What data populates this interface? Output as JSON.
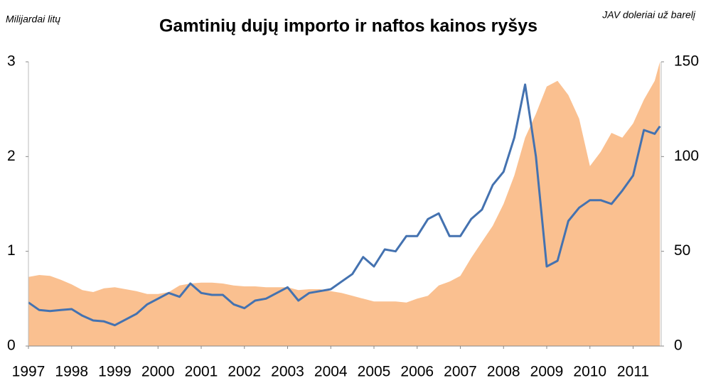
{
  "chart_data": {
    "type": "combo",
    "title": "Gamtinių dujų importo ir naftos kainos ryšys",
    "y_label": "Milijardai litų",
    "y2_label": "JAV doleriai už barelį",
    "x": [
      1997.0,
      1997.25,
      1997.5,
      1997.75,
      1998.0,
      1998.25,
      1998.5,
      1998.75,
      1999.0,
      1999.25,
      1999.5,
      1999.75,
      2000.0,
      2000.25,
      2000.5,
      2000.75,
      2001.0,
      2001.25,
      2001.5,
      2001.75,
      2002.0,
      2002.25,
      2002.5,
      2002.75,
      2003.0,
      2003.25,
      2003.5,
      2003.75,
      2004.0,
      2004.25,
      2004.5,
      2004.75,
      2005.0,
      2005.25,
      2005.5,
      2005.75,
      2006.0,
      2006.25,
      2006.5,
      2006.75,
      2007.0,
      2007.25,
      2007.5,
      2007.75,
      2008.0,
      2008.25,
      2008.5,
      2008.75,
      2009.0,
      2009.25,
      2009.5,
      2009.75,
      2010.0,
      2010.25,
      2010.5,
      2010.75,
      2011.0,
      2011.25,
      2011.5,
      2011.62
    ],
    "series": [
      {
        "type": "area",
        "color": "#fac090",
        "values": [
          0.73,
          0.75,
          0.74,
          0.7,
          0.65,
          0.59,
          0.57,
          0.61,
          0.62,
          0.6,
          0.58,
          0.55,
          0.55,
          0.57,
          0.64,
          0.66,
          0.67,
          0.67,
          0.66,
          0.64,
          0.63,
          0.63,
          0.62,
          0.62,
          0.62,
          0.59,
          0.6,
          0.6,
          0.58,
          0.56,
          0.53,
          0.5,
          0.47,
          0.47,
          0.47,
          0.46,
          0.5,
          0.53,
          0.64,
          0.68,
          0.74,
          0.93,
          1.1,
          1.27,
          1.5,
          1.8,
          2.2,
          2.45,
          2.74,
          2.8,
          2.65,
          2.4,
          1.9,
          2.05,
          2.25,
          2.2,
          2.35,
          2.6,
          2.8,
          3.0
        ]
      },
      {
        "type": "line",
        "axis": "y2",
        "color": "#4472b0",
        "values": [
          23,
          19,
          18.5,
          19,
          19.5,
          16,
          13.5,
          13,
          11,
          14,
          17,
          22,
          25,
          28,
          26,
          33,
          28,
          27,
          27,
          22,
          20,
          24,
          25,
          28,
          31,
          24,
          28,
          29,
          30,
          34,
          38,
          47,
          42,
          51,
          50,
          58,
          58,
          67,
          70,
          58,
          58,
          67,
          72,
          85,
          92,
          110,
          138,
          100,
          42,
          45,
          66,
          73,
          77,
          77,
          75,
          82,
          90,
          114,
          112,
          116
        ]
      }
    ],
    "xlim": [
      1997,
      2011.65
    ],
    "xticks": [
      1997,
      1998,
      1999,
      2000,
      2001,
      2002,
      2003,
      2004,
      2005,
      2006,
      2007,
      2008,
      2009,
      2010,
      2011
    ],
    "ylim": [
      0,
      3
    ],
    "yticks": [
      0,
      1,
      2,
      3
    ],
    "y2lim": [
      0,
      150
    ],
    "y2ticks": [
      0,
      50,
      100,
      150
    ]
  }
}
